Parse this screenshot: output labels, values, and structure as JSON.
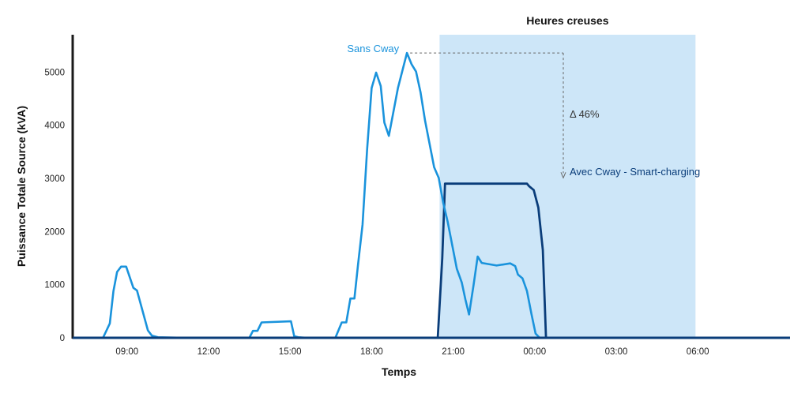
{
  "chart_data": {
    "type": "line",
    "title": "",
    "xlabel": "Temps",
    "ylabel": "Puissance Totale Source (kVA)",
    "ylim": [
      0,
      5600
    ],
    "xlim": [
      0,
      1440
    ],
    "x_ticks": [
      {
        "x": 120,
        "label": "09:00"
      },
      {
        "x": 300,
        "label": "12:00"
      },
      {
        "x": 480,
        "label": "15:00"
      },
      {
        "x": 660,
        "label": "18:00"
      },
      {
        "x": 840,
        "label": "21:00"
      },
      {
        "x": 1020,
        "label": "00:00"
      },
      {
        "x": 1200,
        "label": "03:00"
      },
      {
        "x": 1380,
        "label": "06:00"
      }
    ],
    "y_ticks": [
      0,
      1000,
      2000,
      3000,
      4000,
      5000
    ],
    "grid": false,
    "offpeak_band": {
      "label": "Heures creuses",
      "x_start": 810,
      "x_end": 1375,
      "color": "#cde6f8"
    },
    "colors": {
      "sans": "#1a93dc",
      "avec": "#0a3d7a",
      "axis": "#1a1a1a",
      "arrow": "#666666"
    },
    "series": [
      {
        "name": "Sans Cway",
        "color": "#1a93dc",
        "points": [
          [
            67,
            0
          ],
          [
            82,
            270
          ],
          [
            90,
            880
          ],
          [
            98,
            1240
          ],
          [
            107,
            1340
          ],
          [
            118,
            1340
          ],
          [
            134,
            940
          ],
          [
            142,
            890
          ],
          [
            166,
            140
          ],
          [
            175,
            40
          ],
          [
            188,
            10
          ],
          [
            250,
            0
          ],
          [
            284,
            0
          ],
          [
            390,
            0
          ],
          [
            398,
            130
          ],
          [
            408,
            130
          ],
          [
            417,
            290
          ],
          [
            482,
            310
          ],
          [
            489,
            30
          ],
          [
            498,
            10
          ],
          [
            520,
            0
          ],
          [
            580,
            0
          ],
          [
            594,
            290
          ],
          [
            604,
            290
          ],
          [
            613,
            740
          ],
          [
            622,
            740
          ],
          [
            630,
            1380
          ],
          [
            640,
            2130
          ],
          [
            650,
            3550
          ],
          [
            660,
            4700
          ],
          [
            670,
            4990
          ],
          [
            680,
            4740
          ],
          [
            688,
            4050
          ],
          [
            698,
            3800
          ],
          [
            718,
            4700
          ],
          [
            738,
            5360
          ],
          [
            748,
            5150
          ],
          [
            758,
            5010
          ],
          [
            768,
            4620
          ],
          [
            778,
            4080
          ],
          [
            798,
            3210
          ],
          [
            808,
            3010
          ],
          [
            818,
            2540
          ],
          [
            828,
            2180
          ],
          [
            848,
            1300
          ],
          [
            859,
            1040
          ],
          [
            867,
            720
          ],
          [
            875,
            440
          ],
          [
            885,
            990
          ],
          [
            894,
            1530
          ],
          [
            903,
            1410
          ],
          [
            936,
            1360
          ],
          [
            966,
            1400
          ],
          [
            977,
            1350
          ],
          [
            983,
            1190
          ],
          [
            993,
            1120
          ],
          [
            1003,
            880
          ],
          [
            1013,
            440
          ],
          [
            1022,
            80
          ],
          [
            1031,
            0
          ],
          [
            1080,
            0
          ]
        ]
      },
      {
        "name": "Avec Cway - Smart-charging",
        "color": "#0a3d7a",
        "points": [
          [
            0,
            0
          ],
          [
            806,
            0
          ],
          [
            816,
            1500
          ],
          [
            822,
            2900
          ],
          [
            828,
            2900
          ],
          [
            1003,
            2900
          ],
          [
            1008,
            2850
          ],
          [
            1018,
            2780
          ],
          [
            1028,
            2450
          ],
          [
            1038,
            1650
          ],
          [
            1045,
            0
          ],
          [
            1170,
            0
          ]
        ]
      }
    ],
    "annotations": {
      "sans_label": "Sans Cway",
      "avec_label": "Avec Cway - Smart-charging",
      "delta_label": "Δ 46%",
      "delta_y_from": 5360,
      "delta_y_to": 3010
    }
  }
}
